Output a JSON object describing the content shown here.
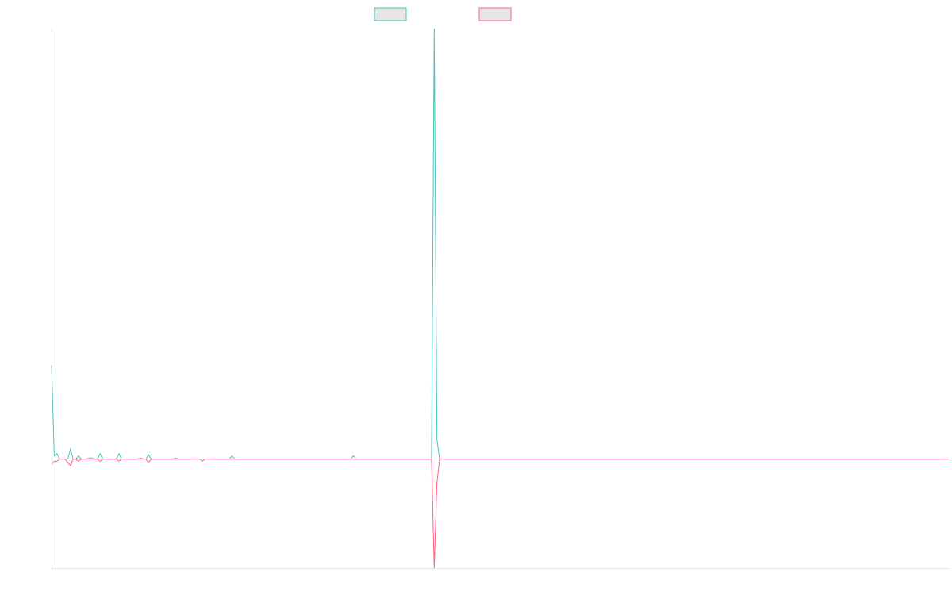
{
  "chart_data": {
    "type": "line",
    "title": "",
    "xlabel": "",
    "ylabel": "",
    "grid": false,
    "legend_position": "top-center",
    "ylim": [
      -100,
      395
    ],
    "series": [
      {
        "color": "#4bc0c0",
        "points": [
          [
            0,
            86
          ],
          [
            1,
            3
          ],
          [
            2,
            5
          ],
          [
            3,
            0
          ],
          [
            4,
            0
          ],
          [
            5,
            0
          ],
          [
            6,
            0
          ],
          [
            7,
            9
          ],
          [
            8,
            0
          ],
          [
            9,
            0
          ],
          [
            10,
            3
          ],
          [
            11,
            0
          ],
          [
            12,
            0
          ],
          [
            13,
            0
          ],
          [
            14,
            1
          ],
          [
            15,
            1
          ],
          [
            16,
            0
          ],
          [
            17,
            0
          ],
          [
            18,
            5
          ],
          [
            19,
            0
          ],
          [
            20,
            0
          ],
          [
            21,
            0
          ],
          [
            22,
            0
          ],
          [
            23,
            0
          ],
          [
            24,
            0
          ],
          [
            25,
            5
          ],
          [
            26,
            0
          ],
          [
            27,
            0
          ],
          [
            28,
            0
          ],
          [
            29,
            0
          ],
          [
            30,
            0
          ],
          [
            31,
            0
          ],
          [
            32,
            0
          ],
          [
            33,
            1
          ],
          [
            34,
            0
          ],
          [
            35,
            0
          ],
          [
            36,
            4
          ],
          [
            37,
            0
          ],
          [
            38,
            0
          ],
          [
            40,
            0
          ],
          [
            45,
            0
          ],
          [
            46,
            1
          ],
          [
            47,
            0
          ],
          [
            50,
            0
          ],
          [
            55,
            0
          ],
          [
            56,
            0
          ],
          [
            57,
            0
          ],
          [
            58,
            0
          ],
          [
            59,
            0
          ],
          [
            60,
            0
          ],
          [
            61,
            0
          ],
          [
            62,
            0
          ],
          [
            63,
            0
          ],
          [
            64,
            0
          ],
          [
            65,
            0
          ],
          [
            66,
            0
          ],
          [
            67,
            3
          ],
          [
            68,
            0
          ],
          [
            80,
            0
          ],
          [
            81,
            0
          ],
          [
            82,
            0
          ],
          [
            100,
            0
          ],
          [
            111,
            0
          ],
          [
            112,
            3
          ],
          [
            113,
            0
          ],
          [
            120,
            0
          ],
          [
            130,
            0
          ],
          [
            135,
            0
          ],
          [
            136,
            0
          ],
          [
            140,
            0
          ],
          [
            141,
            0
          ],
          [
            142,
            395
          ],
          [
            143,
            18
          ],
          [
            144,
            0
          ],
          [
            160,
            0
          ],
          [
            200,
            0
          ],
          [
            250,
            0
          ],
          [
            300,
            0
          ],
          [
            333,
            0
          ]
        ]
      },
      {
        "color": "#ff6384",
        "points": [
          [
            0,
            -5
          ],
          [
            1,
            -2
          ],
          [
            2,
            -2
          ],
          [
            3,
            0
          ],
          [
            4,
            0
          ],
          [
            5,
            0
          ],
          [
            6,
            -3
          ],
          [
            7,
            -6
          ],
          [
            8,
            0
          ],
          [
            9,
            0
          ],
          [
            10,
            -2
          ],
          [
            11,
            0
          ],
          [
            12,
            0
          ],
          [
            13,
            0
          ],
          [
            14,
            0
          ],
          [
            15,
            0
          ],
          [
            16,
            0
          ],
          [
            17,
            0
          ],
          [
            18,
            -2
          ],
          [
            19,
            0
          ],
          [
            20,
            0
          ],
          [
            21,
            0
          ],
          [
            22,
            0
          ],
          [
            23,
            0
          ],
          [
            24,
            0
          ],
          [
            25,
            -2
          ],
          [
            26,
            0
          ],
          [
            27,
            0
          ],
          [
            28,
            0
          ],
          [
            29,
            0
          ],
          [
            30,
            0
          ],
          [
            31,
            0
          ],
          [
            32,
            0
          ],
          [
            33,
            0
          ],
          [
            34,
            0
          ],
          [
            35,
            0
          ],
          [
            36,
            -3
          ],
          [
            37,
            0
          ],
          [
            38,
            0
          ],
          [
            40,
            0
          ],
          [
            45,
            0
          ],
          [
            46,
            0
          ],
          [
            47,
            0
          ],
          [
            50,
            0
          ],
          [
            55,
            0
          ],
          [
            56,
            -2
          ],
          [
            57,
            0
          ],
          [
            58,
            0
          ],
          [
            59,
            0
          ],
          [
            60,
            0
          ],
          [
            61,
            0
          ],
          [
            62,
            0
          ],
          [
            63,
            0
          ],
          [
            64,
            0
          ],
          [
            65,
            0
          ],
          [
            66,
            0
          ],
          [
            67,
            0
          ],
          [
            68,
            0
          ],
          [
            80,
            0
          ],
          [
            81,
            0
          ],
          [
            82,
            0
          ],
          [
            100,
            0
          ],
          [
            111,
            0
          ],
          [
            112,
            0
          ],
          [
            113,
            0
          ],
          [
            120,
            0
          ],
          [
            130,
            0
          ],
          [
            135,
            0
          ],
          [
            136,
            0
          ],
          [
            140,
            0
          ],
          [
            141,
            0
          ],
          [
            142,
            -100
          ],
          [
            143,
            -22
          ],
          [
            144,
            0
          ],
          [
            160,
            0
          ],
          [
            200,
            0
          ],
          [
            250,
            0
          ],
          [
            300,
            0
          ],
          [
            333,
            0
          ]
        ]
      }
    ]
  }
}
